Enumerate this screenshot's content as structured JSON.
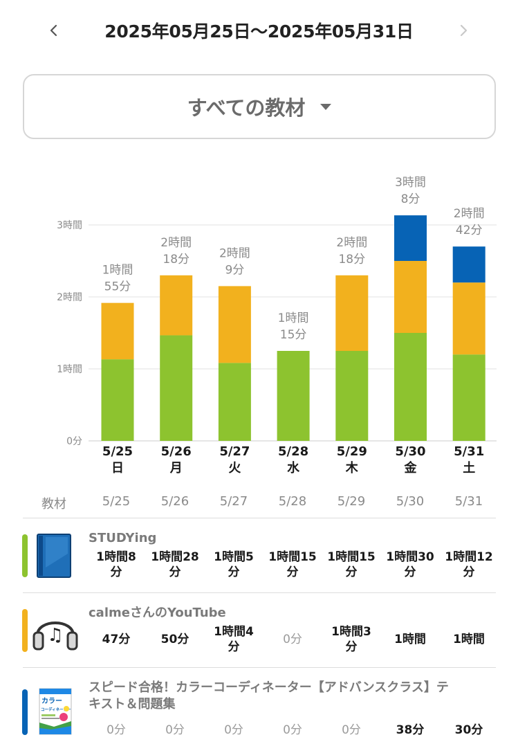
{
  "header": {
    "date_range": "2025年05月25日〜2025年05月31日",
    "prev_icon": "chevron-left-icon",
    "next_icon": "chevron-right-icon"
  },
  "filter": {
    "label": "すべての教材",
    "caret_icon": "caret-down-icon"
  },
  "colors": {
    "green": "#8dc32f",
    "orange": "#f2b11e",
    "blue": "#0763b5",
    "grid": "#e0e0e0"
  },
  "chart_data": {
    "type": "bar",
    "stacked": true,
    "ylim": [
      0,
      3.6
    ],
    "yticks": [
      {
        "value": 0,
        "label": "0分"
      },
      {
        "value": 1,
        "label": "1時間"
      },
      {
        "value": 2,
        "label": "2時間"
      },
      {
        "value": 3,
        "label": "3時間"
      }
    ],
    "categories": [
      {
        "date": "5/25",
        "weekday": "日"
      },
      {
        "date": "5/26",
        "weekday": "月"
      },
      {
        "date": "5/27",
        "weekday": "火"
      },
      {
        "date": "5/28",
        "weekday": "水"
      },
      {
        "date": "5/29",
        "weekday": "木"
      },
      {
        "date": "5/30",
        "weekday": "金"
      },
      {
        "date": "5/31",
        "weekday": "土"
      }
    ],
    "series": [
      {
        "material": "STUDYing",
        "color": "#8dc32f",
        "minutes": [
          68,
          88,
          65,
          75,
          75,
          90,
          72
        ]
      },
      {
        "material": "calmeさんのYouTube",
        "color": "#f2b11e",
        "minutes": [
          47,
          50,
          64,
          0,
          63,
          60,
          60
        ]
      },
      {
        "material": "スピード合格！カラーコーディネーター【アドバンスクラス】テキスト＆問題集",
        "color": "#0763b5",
        "minutes": [
          0,
          0,
          0,
          0,
          0,
          38,
          30
        ]
      }
    ],
    "totals": [
      [
        "1時間",
        "55分"
      ],
      [
        "2時間",
        "18分"
      ],
      [
        "2時間",
        "9分"
      ],
      [
        "1時間",
        "15分"
      ],
      [
        "2時間",
        "18分"
      ],
      [
        "3時間",
        "8分"
      ],
      [
        "2時間",
        "42分"
      ]
    ]
  },
  "table": {
    "header_label": "教材",
    "dates": [
      "5/25",
      "5/26",
      "5/27",
      "5/28",
      "5/29",
      "5/30",
      "5/31"
    ],
    "rows": [
      {
        "title": "STUDYing",
        "color": "#8dc32f",
        "icon": "blue-book-icon",
        "cells": [
          [
            "1時間8",
            "分"
          ],
          [
            "1時間28",
            "分"
          ],
          [
            "1時間5",
            "分"
          ],
          [
            "1時間15",
            "分"
          ],
          [
            "1時間15",
            "分"
          ],
          [
            "1時間30",
            "分"
          ],
          [
            "1時間12",
            "分"
          ]
        ],
        "zero": [
          false,
          false,
          false,
          false,
          false,
          false,
          false
        ]
      },
      {
        "title": "calmeさんのYouTube",
        "color": "#f2b11e",
        "icon": "headphones-music-icon",
        "cells": [
          [
            "47分"
          ],
          [
            "50分"
          ],
          [
            "1時間4",
            "分"
          ],
          [
            "0分"
          ],
          [
            "1時間3",
            "分"
          ],
          [
            "1時間"
          ],
          [
            "1時間"
          ]
        ],
        "zero": [
          false,
          false,
          false,
          true,
          false,
          false,
          false
        ]
      },
      {
        "title_lines": [
          "スピード合格！カラーコーディネーター【アドバンスクラス】テ",
          "キスト＆問題集"
        ],
        "color": "#0763b5",
        "icon": "textbook-cover-icon",
        "cover_text": [
          "カラー",
          "コーディネーター"
        ],
        "cells": [
          [
            "0分"
          ],
          [
            "0分"
          ],
          [
            "0分"
          ],
          [
            "0分"
          ],
          [
            "0分"
          ],
          [
            "38分"
          ],
          [
            "30分"
          ]
        ],
        "zero": [
          true,
          true,
          true,
          true,
          true,
          false,
          false
        ]
      }
    ]
  }
}
